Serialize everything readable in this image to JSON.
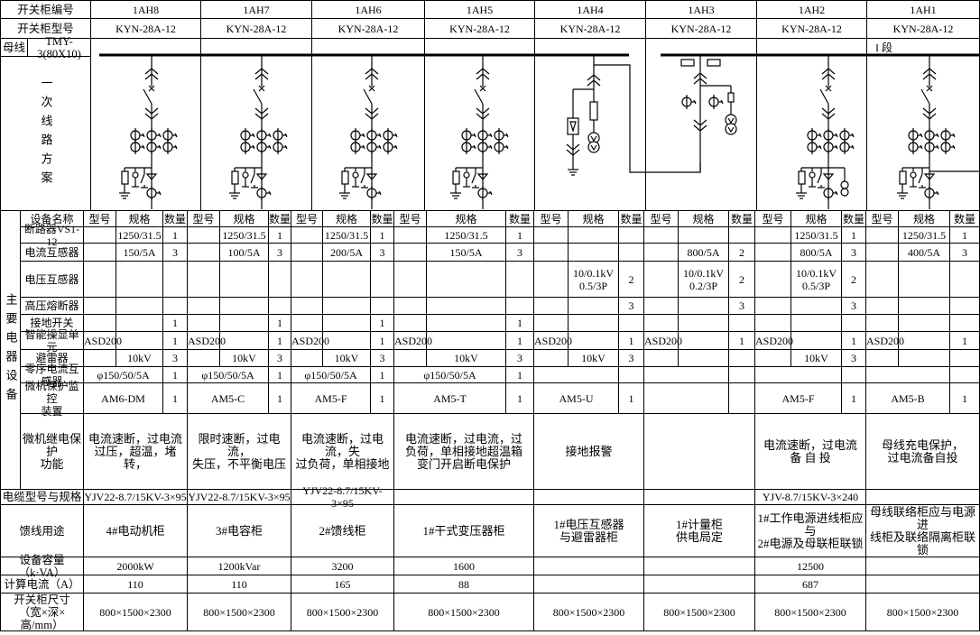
{
  "header": {
    "cabinet_no_label": "开关柜编号",
    "cabinet_model_label": "开关柜型号",
    "busbar_label": "母线",
    "busbar_spec": "TMY-3(80X10)",
    "scheme_label": "一次线路方案",
    "section_label": "I 段",
    "cabinets": [
      {
        "id": "1AH8",
        "model": "KYN-28A-12"
      },
      {
        "id": "1AH7",
        "model": "KYN-28A-12"
      },
      {
        "id": "1AH6",
        "model": "KYN-28A-12"
      },
      {
        "id": "1AH5",
        "model": "KYN-28A-12"
      },
      {
        "id": "1AH4",
        "model": "KYN-28A-12"
      },
      {
        "id": "1AH3",
        "model": "KYN-28A-12"
      },
      {
        "id": "1AH2",
        "model": "KYN-28A-12"
      },
      {
        "id": "1AH1",
        "model": "KYN-28A-12"
      }
    ]
  },
  "diagram": {
    "schemes": [
      "feeder",
      "feeder",
      "feeder",
      "feeder",
      "voltage-transformer-arrester",
      "metering",
      "incoming",
      "bus-tie"
    ]
  },
  "equipment": {
    "group_label": "主要电器设备",
    "col_headers": {
      "name": "设备名称",
      "type": "型号",
      "spec": "规格",
      "qty": "数量"
    },
    "rows": [
      {
        "name": "断路器VS1-12",
        "cells": [
          [
            "",
            "1250/31.5",
            "1"
          ],
          [
            "",
            "1250/31.5",
            "1"
          ],
          [
            "",
            "1250/31.5",
            "1"
          ],
          [
            "",
            "1250/31.5",
            "1"
          ],
          [
            "",
            "",
            ""
          ],
          [
            "",
            "",
            ""
          ],
          [
            "",
            "1250/31.5",
            "1"
          ],
          [
            "",
            "1250/31.5",
            "1"
          ]
        ]
      },
      {
        "name": "电流互感器",
        "cells": [
          [
            "",
            "150/5A",
            "3"
          ],
          [
            "",
            "100/5A",
            "3"
          ],
          [
            "",
            "200/5A",
            "3"
          ],
          [
            "",
            "150/5A",
            "3"
          ],
          [
            "",
            "",
            ""
          ],
          [
            "",
            "800/5A",
            "2"
          ],
          [
            "",
            "800/5A",
            "3"
          ],
          [
            "",
            "400/5A",
            "3"
          ]
        ]
      },
      {
        "name": "电压互感器",
        "cells": [
          [
            "",
            "",
            ""
          ],
          [
            "",
            "",
            ""
          ],
          [
            "",
            "",
            ""
          ],
          [
            "",
            "",
            ""
          ],
          [
            "",
            "10/0.1kV\n0.5/3P",
            "2"
          ],
          [
            "",
            "10/0.1kV\n0.2/3P",
            "2"
          ],
          [
            "",
            "10/0.1kV\n0.5/3P",
            "2"
          ],
          [
            "",
            "",
            ""
          ]
        ]
      },
      {
        "name": "高压熔断器",
        "cells": [
          [
            "",
            "",
            ""
          ],
          [
            "",
            "",
            ""
          ],
          [
            "",
            "",
            ""
          ],
          [
            "",
            "",
            ""
          ],
          [
            "",
            "",
            "3"
          ],
          [
            "",
            "",
            "3"
          ],
          [
            "",
            "",
            "3"
          ],
          [
            "",
            "",
            ""
          ]
        ]
      },
      {
        "name": "接地开关",
        "cells": [
          [
            "",
            "",
            "1"
          ],
          [
            "",
            "",
            "1"
          ],
          [
            "",
            "",
            "1"
          ],
          [
            "",
            "",
            "1"
          ],
          [
            "",
            "",
            ""
          ],
          [
            "",
            "",
            ""
          ],
          [
            "",
            "",
            ""
          ],
          [
            "",
            "",
            ""
          ]
        ]
      },
      {
        "name": "智能操显单元",
        "cells": [
          [
            "ASD200",
            "",
            "1"
          ],
          [
            "ASD200",
            "",
            "1"
          ],
          [
            "ASD200",
            "",
            "1"
          ],
          [
            "ASD200",
            "",
            "1"
          ],
          [
            "ASD200",
            "",
            "1"
          ],
          [
            "ASD200",
            "",
            "1"
          ],
          [
            "ASD200",
            "",
            "1"
          ],
          [
            "ASD200",
            "",
            "1"
          ]
        ]
      },
      {
        "name": "避雷器",
        "cells": [
          [
            "",
            "10kV",
            "3"
          ],
          [
            "",
            "10kV",
            "3"
          ],
          [
            "",
            "10kV",
            "3"
          ],
          [
            "",
            "10kV",
            "3"
          ],
          [
            "",
            "10kV",
            "3"
          ],
          [
            "",
            "",
            ""
          ],
          [
            "",
            "10kV",
            "3"
          ],
          [
            "",
            "",
            ""
          ]
        ]
      },
      {
        "name": "零序电流互感器",
        "merged": true,
        "cells": [
          [
            "φ150/50/5A",
            "1"
          ],
          [
            "φ150/50/5A",
            "1"
          ],
          [
            "φ150/50/5A",
            "1"
          ],
          [
            "φ150/50/5A",
            "1"
          ],
          [
            "",
            ""
          ],
          [
            "",
            ""
          ],
          [
            "",
            ""
          ],
          [
            "",
            ""
          ]
        ]
      },
      {
        "name": "微机保护监控\n装置",
        "merged": true,
        "cells": [
          [
            "AM6-DM",
            "1"
          ],
          [
            "AM5-C",
            "1"
          ],
          [
            "AM5-F",
            "1"
          ],
          [
            "AM5-T",
            "1"
          ],
          [
            "AM5-U",
            "1"
          ],
          [
            "",
            ""
          ],
          [
            "AM5-F",
            "1"
          ],
          [
            "AM5-B",
            "1"
          ]
        ]
      }
    ],
    "protection": {
      "label": "微机继电保护\n功能",
      "values": [
        "电流速断，过电流\n过压，超温，堵转，",
        "限时速断，过电流，\n失压，不平衡电压",
        "电流速断，过电流，失\n过负荷，单相接地",
        "电流速断，过电流，过\n负荷，单相接地超温箱\n变门开启断电保护",
        "接地报警",
        "",
        "电流速断，过电流\n备 自 投",
        "母线充电保护，\n过电流备自投"
      ]
    }
  },
  "bottom_rows": [
    {
      "label": "电缆型号与规格",
      "values": [
        "YJV22-8.7/15KV-3×95",
        "YJV22-8.7/15KV-3×95",
        "YJV22-8.7/15KV-3×95",
        "",
        "",
        "",
        "YJV-8.7/15KV-3×240",
        ""
      ]
    },
    {
      "label": "馈线用途",
      "values": [
        "4#电动机柜",
        "3#电容柜",
        "2#馈线柜",
        "1#干式变压器柜",
        "1#电压互感器\n与避雷器柜",
        "1#计量柜\n供电局定",
        "1#工作电源进线柜应与\n2#电源及母联柜联锁",
        "母线联络柜应与电源进\n线柜及联络隔离柜联锁"
      ]
    },
    {
      "label": "设备容量（k·VA）",
      "values": [
        "2000kW",
        "1200kVar",
        "3200",
        "1600",
        "",
        "",
        "12500",
        ""
      ]
    },
    {
      "label": "计算电流（A）",
      "values": [
        "110",
        "110",
        "165",
        "88",
        "",
        "",
        "687",
        ""
      ]
    },
    {
      "label": "开关柜尺寸\n（宽×深×高/mm）",
      "values": [
        "800×1500×2300",
        "800×1500×2300",
        "800×1500×2300",
        "800×1500×2300",
        "800×1500×2300",
        "800×1500×2300",
        "800×1500×2300",
        "800×1500×2300"
      ]
    }
  ]
}
